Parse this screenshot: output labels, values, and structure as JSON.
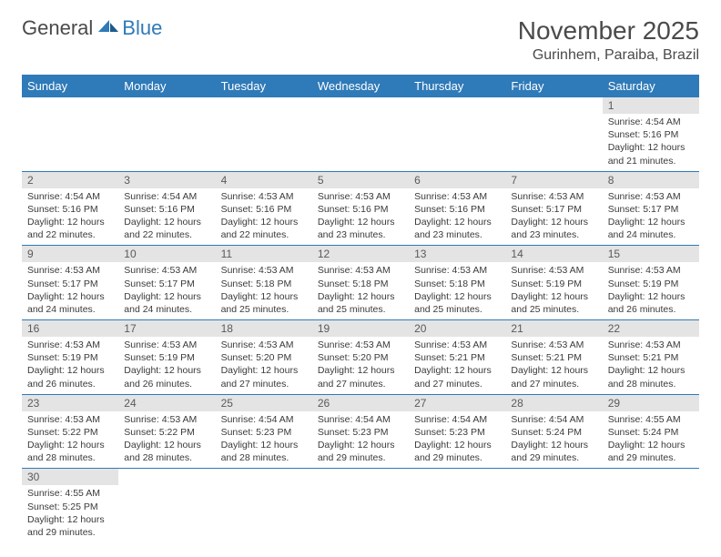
{
  "logo": {
    "general": "General",
    "blue": "Blue"
  },
  "title": "November 2025",
  "location": "Gurinhem, Paraiba, Brazil",
  "colors": {
    "header_bg": "#2f7ab8",
    "header_text": "#ffffff",
    "daynum_bg": "#e4e4e4",
    "body_text": "#3a3a3a",
    "border": "#2f7ab8"
  },
  "weekdays": [
    "Sunday",
    "Monday",
    "Tuesday",
    "Wednesday",
    "Thursday",
    "Friday",
    "Saturday"
  ],
  "weeks": [
    [
      null,
      null,
      null,
      null,
      null,
      null,
      {
        "n": "1",
        "sunrise": "Sunrise: 4:54 AM",
        "sunset": "Sunset: 5:16 PM",
        "daylight1": "Daylight: 12 hours",
        "daylight2": "and 21 minutes."
      }
    ],
    [
      {
        "n": "2",
        "sunrise": "Sunrise: 4:54 AM",
        "sunset": "Sunset: 5:16 PM",
        "daylight1": "Daylight: 12 hours",
        "daylight2": "and 22 minutes."
      },
      {
        "n": "3",
        "sunrise": "Sunrise: 4:54 AM",
        "sunset": "Sunset: 5:16 PM",
        "daylight1": "Daylight: 12 hours",
        "daylight2": "and 22 minutes."
      },
      {
        "n": "4",
        "sunrise": "Sunrise: 4:53 AM",
        "sunset": "Sunset: 5:16 PM",
        "daylight1": "Daylight: 12 hours",
        "daylight2": "and 22 minutes."
      },
      {
        "n": "5",
        "sunrise": "Sunrise: 4:53 AM",
        "sunset": "Sunset: 5:16 PM",
        "daylight1": "Daylight: 12 hours",
        "daylight2": "and 23 minutes."
      },
      {
        "n": "6",
        "sunrise": "Sunrise: 4:53 AM",
        "sunset": "Sunset: 5:16 PM",
        "daylight1": "Daylight: 12 hours",
        "daylight2": "and 23 minutes."
      },
      {
        "n": "7",
        "sunrise": "Sunrise: 4:53 AM",
        "sunset": "Sunset: 5:17 PM",
        "daylight1": "Daylight: 12 hours",
        "daylight2": "and 23 minutes."
      },
      {
        "n": "8",
        "sunrise": "Sunrise: 4:53 AM",
        "sunset": "Sunset: 5:17 PM",
        "daylight1": "Daylight: 12 hours",
        "daylight2": "and 24 minutes."
      }
    ],
    [
      {
        "n": "9",
        "sunrise": "Sunrise: 4:53 AM",
        "sunset": "Sunset: 5:17 PM",
        "daylight1": "Daylight: 12 hours",
        "daylight2": "and 24 minutes."
      },
      {
        "n": "10",
        "sunrise": "Sunrise: 4:53 AM",
        "sunset": "Sunset: 5:17 PM",
        "daylight1": "Daylight: 12 hours",
        "daylight2": "and 24 minutes."
      },
      {
        "n": "11",
        "sunrise": "Sunrise: 4:53 AM",
        "sunset": "Sunset: 5:18 PM",
        "daylight1": "Daylight: 12 hours",
        "daylight2": "and 25 minutes."
      },
      {
        "n": "12",
        "sunrise": "Sunrise: 4:53 AM",
        "sunset": "Sunset: 5:18 PM",
        "daylight1": "Daylight: 12 hours",
        "daylight2": "and 25 minutes."
      },
      {
        "n": "13",
        "sunrise": "Sunrise: 4:53 AM",
        "sunset": "Sunset: 5:18 PM",
        "daylight1": "Daylight: 12 hours",
        "daylight2": "and 25 minutes."
      },
      {
        "n": "14",
        "sunrise": "Sunrise: 4:53 AM",
        "sunset": "Sunset: 5:19 PM",
        "daylight1": "Daylight: 12 hours",
        "daylight2": "and 25 minutes."
      },
      {
        "n": "15",
        "sunrise": "Sunrise: 4:53 AM",
        "sunset": "Sunset: 5:19 PM",
        "daylight1": "Daylight: 12 hours",
        "daylight2": "and 26 minutes."
      }
    ],
    [
      {
        "n": "16",
        "sunrise": "Sunrise: 4:53 AM",
        "sunset": "Sunset: 5:19 PM",
        "daylight1": "Daylight: 12 hours",
        "daylight2": "and 26 minutes."
      },
      {
        "n": "17",
        "sunrise": "Sunrise: 4:53 AM",
        "sunset": "Sunset: 5:19 PM",
        "daylight1": "Daylight: 12 hours",
        "daylight2": "and 26 minutes."
      },
      {
        "n": "18",
        "sunrise": "Sunrise: 4:53 AM",
        "sunset": "Sunset: 5:20 PM",
        "daylight1": "Daylight: 12 hours",
        "daylight2": "and 27 minutes."
      },
      {
        "n": "19",
        "sunrise": "Sunrise: 4:53 AM",
        "sunset": "Sunset: 5:20 PM",
        "daylight1": "Daylight: 12 hours",
        "daylight2": "and 27 minutes."
      },
      {
        "n": "20",
        "sunrise": "Sunrise: 4:53 AM",
        "sunset": "Sunset: 5:21 PM",
        "daylight1": "Daylight: 12 hours",
        "daylight2": "and 27 minutes."
      },
      {
        "n": "21",
        "sunrise": "Sunrise: 4:53 AM",
        "sunset": "Sunset: 5:21 PM",
        "daylight1": "Daylight: 12 hours",
        "daylight2": "and 27 minutes."
      },
      {
        "n": "22",
        "sunrise": "Sunrise: 4:53 AM",
        "sunset": "Sunset: 5:21 PM",
        "daylight1": "Daylight: 12 hours",
        "daylight2": "and 28 minutes."
      }
    ],
    [
      {
        "n": "23",
        "sunrise": "Sunrise: 4:53 AM",
        "sunset": "Sunset: 5:22 PM",
        "daylight1": "Daylight: 12 hours",
        "daylight2": "and 28 minutes."
      },
      {
        "n": "24",
        "sunrise": "Sunrise: 4:53 AM",
        "sunset": "Sunset: 5:22 PM",
        "daylight1": "Daylight: 12 hours",
        "daylight2": "and 28 minutes."
      },
      {
        "n": "25",
        "sunrise": "Sunrise: 4:54 AM",
        "sunset": "Sunset: 5:23 PM",
        "daylight1": "Daylight: 12 hours",
        "daylight2": "and 28 minutes."
      },
      {
        "n": "26",
        "sunrise": "Sunrise: 4:54 AM",
        "sunset": "Sunset: 5:23 PM",
        "daylight1": "Daylight: 12 hours",
        "daylight2": "and 29 minutes."
      },
      {
        "n": "27",
        "sunrise": "Sunrise: 4:54 AM",
        "sunset": "Sunset: 5:23 PM",
        "daylight1": "Daylight: 12 hours",
        "daylight2": "and 29 minutes."
      },
      {
        "n": "28",
        "sunrise": "Sunrise: 4:54 AM",
        "sunset": "Sunset: 5:24 PM",
        "daylight1": "Daylight: 12 hours",
        "daylight2": "and 29 minutes."
      },
      {
        "n": "29",
        "sunrise": "Sunrise: 4:55 AM",
        "sunset": "Sunset: 5:24 PM",
        "daylight1": "Daylight: 12 hours",
        "daylight2": "and 29 minutes."
      }
    ],
    [
      {
        "n": "30",
        "sunrise": "Sunrise: 4:55 AM",
        "sunset": "Sunset: 5:25 PM",
        "daylight1": "Daylight: 12 hours",
        "daylight2": "and 29 minutes."
      },
      null,
      null,
      null,
      null,
      null,
      null
    ]
  ]
}
